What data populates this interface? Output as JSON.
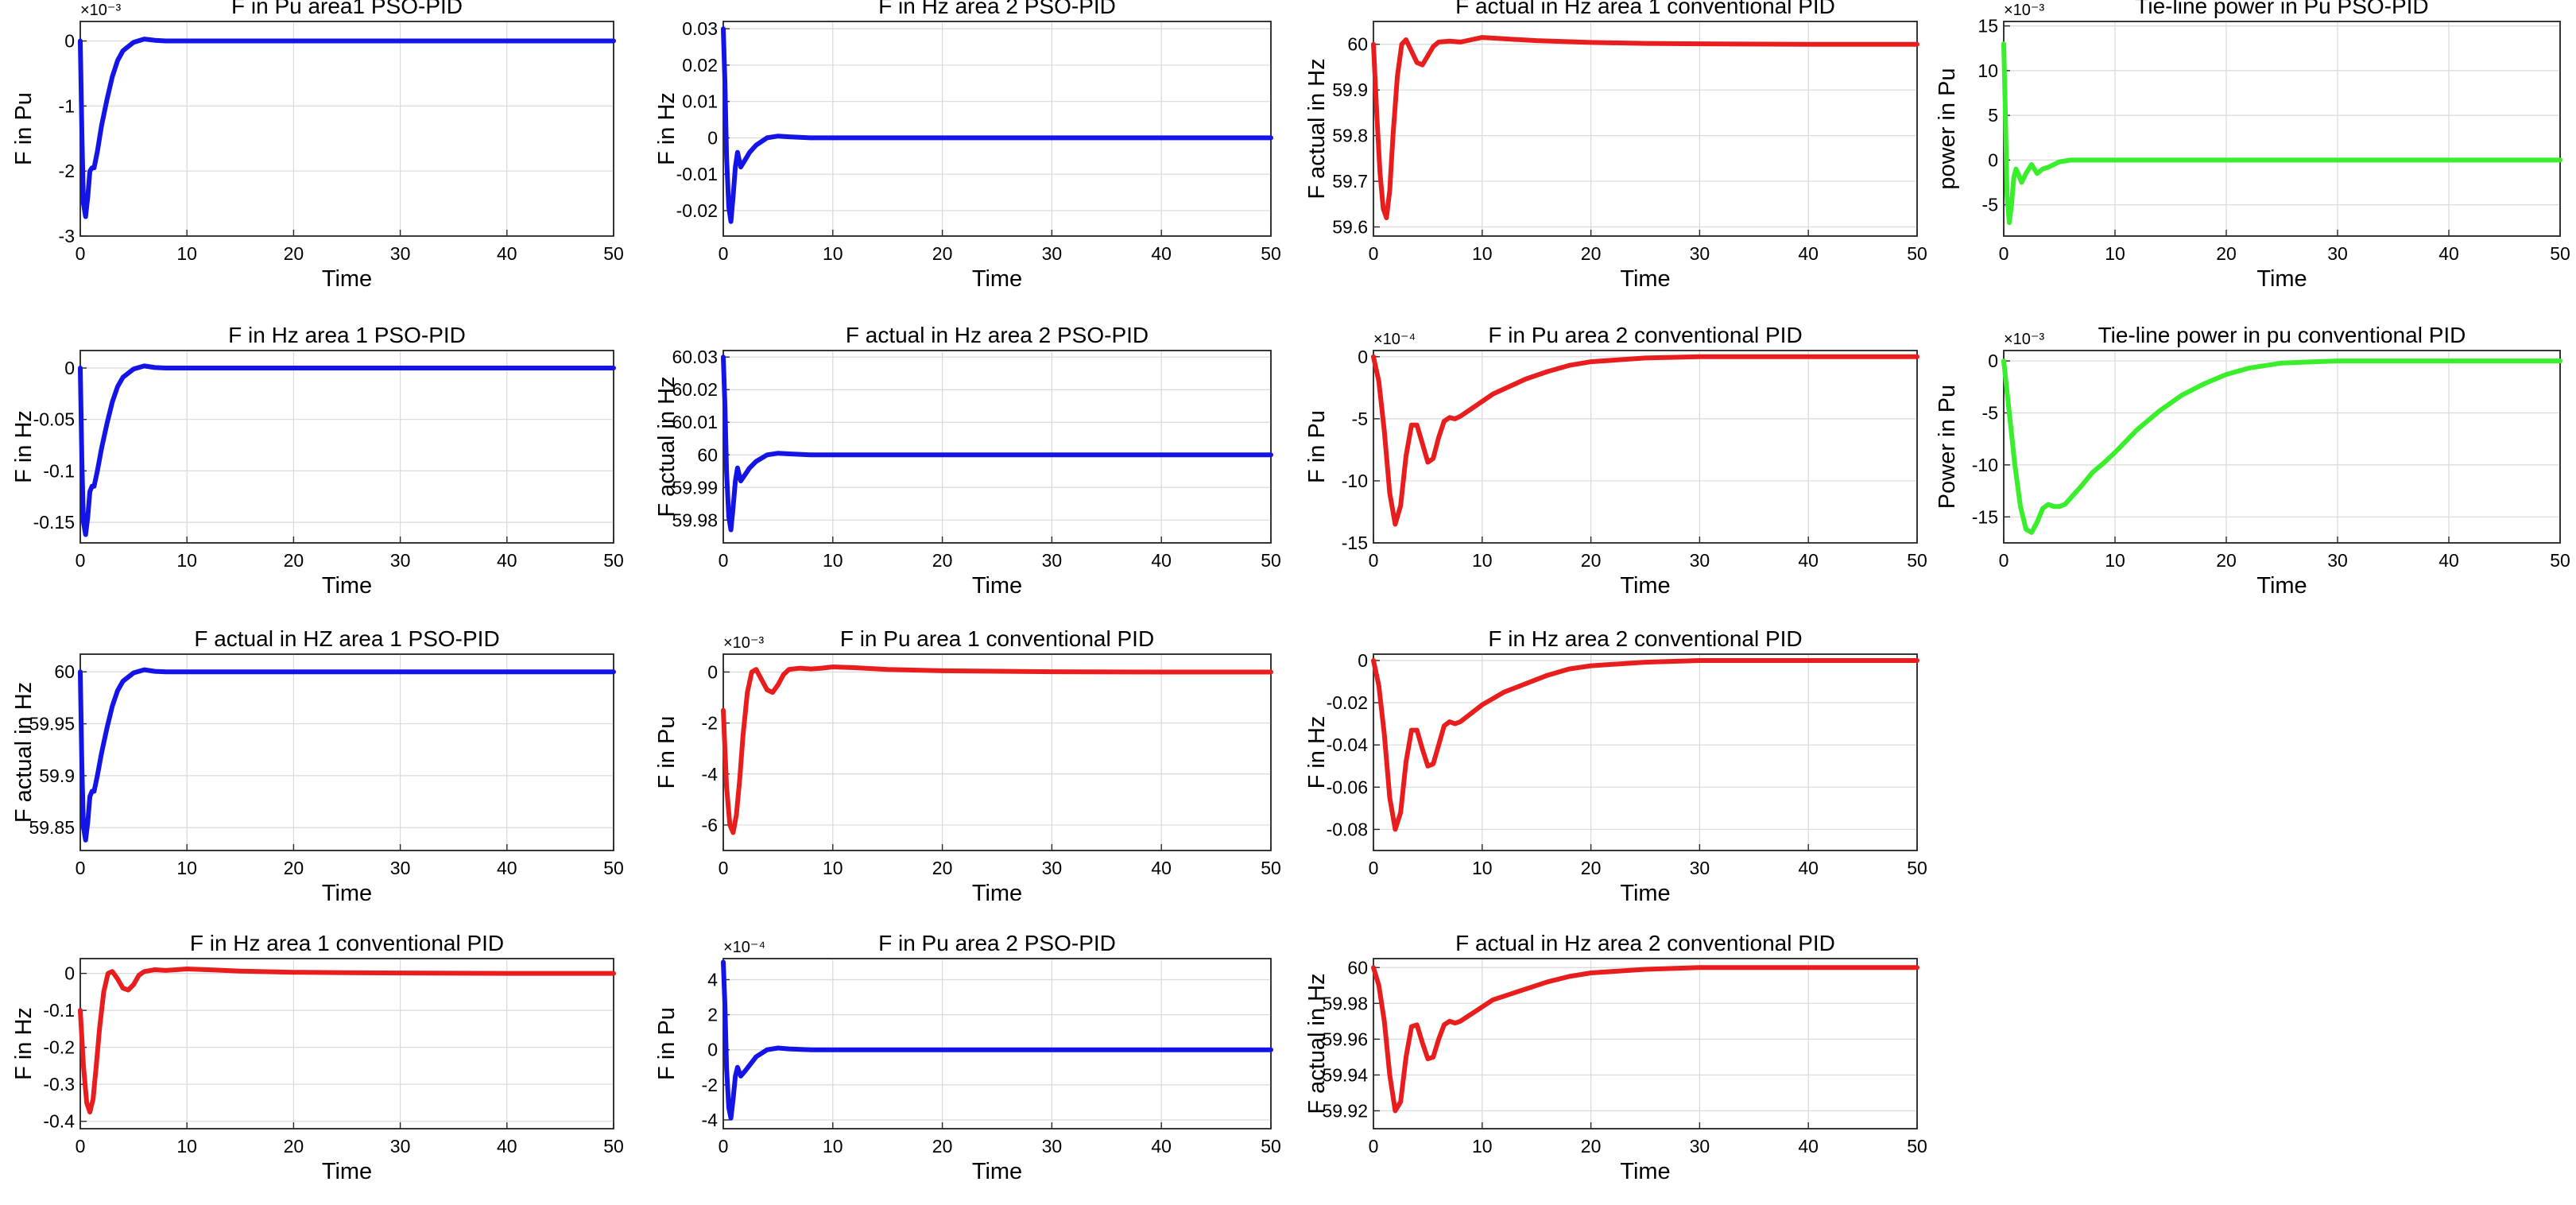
{
  "figure": {
    "colors": {
      "pso": "#1414e6",
      "conventional": "#e81e1e",
      "tieline": "#39ee2a"
    },
    "common_xlabel": "Time",
    "x_ticks": [
      0,
      10,
      20,
      30,
      40,
      50
    ]
  },
  "chart_data": [
    {
      "id": "p1",
      "type": "line",
      "title": "F in Pu area1 PSO-PID",
      "xlabel": "Time",
      "ylabel": "F in Pu",
      "exponent": "×10⁻³",
      "xlim": [
        0,
        50
      ],
      "ylim": [
        -3,
        0.3
      ],
      "yticks": [
        0,
        -1,
        -2,
        -3
      ],
      "ytick_labels": [
        "0",
        "-1",
        "-2",
        "-3"
      ],
      "color_key": "pso",
      "x": [
        0,
        0.15,
        0.3,
        0.5,
        0.7,
        0.9,
        1.1,
        1.3,
        1.6,
        2,
        2.5,
        3,
        3.5,
        4,
        5,
        6,
        7,
        8,
        10,
        15,
        20,
        30,
        40,
        50
      ],
      "y": [
        0,
        -1.4,
        -2.5,
        -2.7,
        -2.4,
        -2.0,
        -1.95,
        -1.95,
        -1.7,
        -1.3,
        -0.9,
        -0.55,
        -0.3,
        -0.15,
        -0.02,
        0.03,
        0.01,
        0,
        0,
        0,
        0,
        0,
        0,
        0
      ]
    },
    {
      "id": "p2",
      "type": "line",
      "title": "F in Hz area 2 PSO-PID",
      "xlabel": "Time",
      "ylabel": "F in Hz",
      "exponent": "",
      "xlim": [
        0,
        50
      ],
      "ylim": [
        -0.027,
        0.032
      ],
      "yticks": [
        0.03,
        0.02,
        0.01,
        0,
        -0.01,
        -0.02
      ],
      "ytick_labels": [
        "0.03",
        "0.02",
        "0.01",
        "0",
        "-0.01",
        "-0.02"
      ],
      "color_key": "pso",
      "x": [
        0,
        0.15,
        0.3,
        0.5,
        0.7,
        0.9,
        1.1,
        1.3,
        1.6,
        2,
        2.4,
        3,
        3.5,
        4,
        5,
        6,
        8,
        10,
        20,
        30,
        40,
        50
      ],
      "y": [
        0.03,
        0.015,
        -0.005,
        -0.019,
        -0.023,
        -0.016,
        -0.008,
        -0.004,
        -0.008,
        -0.006,
        -0.004,
        -0.002,
        -0.001,
        0,
        0.0005,
        0.0003,
        0,
        0,
        0,
        0,
        0,
        0
      ]
    },
    {
      "id": "p3",
      "type": "line",
      "title": "F actual in Hz area 1 conventional PID",
      "xlabel": "Time",
      "ylabel": "F actual in Hz",
      "exponent": "",
      "xlim": [
        0,
        50
      ],
      "ylim": [
        59.58,
        60.05
      ],
      "yticks": [
        60,
        59.9,
        59.8,
        59.7,
        59.6
      ],
      "ytick_labels": [
        "60",
        "59.9",
        "59.8",
        "59.7",
        "59.6"
      ],
      "color_key": "conventional",
      "x": [
        0,
        0.3,
        0.6,
        0.9,
        1.2,
        1.5,
        1.8,
        2.2,
        2.6,
        3,
        3.5,
        4,
        4.5,
        5,
        5.5,
        6,
        7,
        8,
        9,
        10,
        12,
        15,
        20,
        25,
        30,
        40,
        50
      ],
      "y": [
        60,
        59.85,
        59.72,
        59.64,
        59.62,
        59.68,
        59.8,
        59.93,
        60,
        60.01,
        59.985,
        59.96,
        59.955,
        59.975,
        59.995,
        60.005,
        60.007,
        60.005,
        60.01,
        60.015,
        60.012,
        60.008,
        60.004,
        60.002,
        60.001,
        60,
        60
      ]
    },
    {
      "id": "p4",
      "type": "line",
      "title": "Tie-line power  in Pu PSO-PID",
      "xlabel": "Time",
      "ylabel": "power in Pu",
      "exponent": "×10⁻³",
      "xlim": [
        0,
        50
      ],
      "ylim": [
        -8.5,
        15.5
      ],
      "yticks": [
        15,
        10,
        5,
        0,
        -5
      ],
      "ytick_labels": [
        "15",
        "10",
        "5",
        "0",
        "-5"
      ],
      "color_key": "tieline",
      "x": [
        0,
        0.15,
        0.3,
        0.5,
        0.7,
        0.9,
        1.1,
        1.3,
        1.6,
        2,
        2.5,
        3,
        3.5,
        4,
        5,
        6,
        8,
        10,
        20,
        30,
        40,
        50
      ],
      "y": [
        13,
        5,
        -4,
        -7,
        -5,
        -2,
        -1,
        -1.5,
        -2.5,
        -1.5,
        -0.5,
        -1.5,
        -1,
        -0.8,
        -0.2,
        0,
        0,
        0,
        0,
        0,
        0,
        0
      ]
    },
    {
      "id": "p5",
      "type": "line",
      "title": "F in Hz area 1 PSO-PID",
      "xlabel": "Time",
      "ylabel": "F in Hz",
      "exponent": "",
      "xlim": [
        0,
        50
      ],
      "ylim": [
        -0.17,
        0.017
      ],
      "yticks": [
        0,
        -0.05,
        -0.1,
        -0.15
      ],
      "ytick_labels": [
        "0",
        "-0.05",
        "-0.1",
        "-0.15"
      ],
      "color_key": "pso",
      "x": [
        0,
        0.15,
        0.3,
        0.5,
        0.7,
        0.9,
        1.1,
        1.3,
        1.6,
        2,
        2.5,
        3,
        3.5,
        4,
        5,
        6,
        7,
        8,
        10,
        15,
        20,
        30,
        40,
        50
      ],
      "y": [
        0,
        -0.09,
        -0.15,
        -0.162,
        -0.145,
        -0.12,
        -0.115,
        -0.115,
        -0.1,
        -0.078,
        -0.054,
        -0.033,
        -0.018,
        -0.009,
        -0.001,
        0.002,
        0.0005,
        0,
        0,
        0,
        0,
        0,
        0,
        0
      ]
    },
    {
      "id": "p6",
      "type": "line",
      "title": "F actual in Hz area 2 PSO-PID",
      "xlabel": "Time",
      "ylabel": "F actual in Hz",
      "exponent": "",
      "xlim": [
        0,
        50
      ],
      "ylim": [
        59.973,
        60.032
      ],
      "yticks": [
        60.03,
        60.02,
        60.01,
        60,
        59.99,
        59.98
      ],
      "ytick_labels": [
        "60.03",
        "60.02",
        "60.01",
        "60",
        "59.99",
        "59.98"
      ],
      "color_key": "pso",
      "x": [
        0,
        0.15,
        0.3,
        0.5,
        0.7,
        0.9,
        1.1,
        1.3,
        1.6,
        2,
        2.4,
        3,
        3.5,
        4,
        5,
        6,
        8,
        10,
        20,
        30,
        40,
        50
      ],
      "y": [
        60.03,
        60.015,
        59.995,
        59.981,
        59.977,
        59.984,
        59.992,
        59.996,
        59.992,
        59.994,
        59.996,
        59.998,
        59.999,
        60,
        60.0005,
        60.0003,
        60,
        60,
        60,
        60,
        60,
        60
      ]
    },
    {
      "id": "p7",
      "type": "line",
      "title": "F in Pu area 2 conventional PID",
      "xlabel": "Time",
      "ylabel": "F in Pu",
      "exponent": "×10⁻⁴",
      "xlim": [
        0,
        50
      ],
      "ylim": [
        -15,
        0.5
      ],
      "yticks": [
        0,
        -5,
        -10,
        -15
      ],
      "ytick_labels": [
        "0",
        "-5",
        "-10",
        "-15"
      ],
      "color_key": "conventional",
      "x": [
        0,
        0.5,
        1,
        1.5,
        2,
        2.5,
        3,
        3.5,
        4,
        4.5,
        5,
        5.5,
        6,
        6.5,
        7,
        7.5,
        8,
        9,
        10,
        11,
        12,
        14,
        16,
        18,
        20,
        25,
        30,
        40,
        50
      ],
      "y": [
        0,
        -2,
        -6,
        -11,
        -13.5,
        -12,
        -8,
        -5.5,
        -5.5,
        -7,
        -8.5,
        -8.2,
        -6.5,
        -5.2,
        -4.9,
        -5,
        -4.8,
        -4.2,
        -3.6,
        -3,
        -2.6,
        -1.8,
        -1.2,
        -0.7,
        -0.4,
        -0.1,
        0,
        0,
        0
      ]
    },
    {
      "id": "p8",
      "type": "line",
      "title": "Tie-line power in pu conventional PID",
      "xlabel": "Time",
      "ylabel": "Power in Pu",
      "exponent": "×10⁻³",
      "xlim": [
        0,
        50
      ],
      "ylim": [
        -17.5,
        1
      ],
      "yticks": [
        0,
        -5,
        -10,
        -15
      ],
      "ytick_labels": [
        "0",
        "-5",
        "-10",
        "-15"
      ],
      "color_key": "tieline",
      "x": [
        0,
        0.5,
        1,
        1.5,
        2,
        2.5,
        3,
        3.5,
        4,
        4.5,
        5,
        5.5,
        6,
        7,
        8,
        9,
        10,
        12,
        14,
        16,
        18,
        20,
        22,
        25,
        30,
        40,
        50
      ],
      "y": [
        0,
        -5,
        -10,
        -14,
        -16.2,
        -16.5,
        -15.5,
        -14.2,
        -13.8,
        -14,
        -14,
        -13.8,
        -13.2,
        -12,
        -10.7,
        -9.8,
        -8.8,
        -6.6,
        -4.8,
        -3.3,
        -2.2,
        -1.3,
        -0.7,
        -0.2,
        0,
        0,
        0
      ]
    },
    {
      "id": "p9",
      "type": "line",
      "title": "F actual in HZ area 1 PSO-PID",
      "xlabel": "Time",
      "ylabel": "F actual in Hz",
      "exponent": "",
      "xlim": [
        0,
        50
      ],
      "ylim": [
        59.828,
        60.017
      ],
      "yticks": [
        60,
        59.95,
        59.9,
        59.85
      ],
      "ytick_labels": [
        "60",
        "59.95",
        "59.9",
        "59.85"
      ],
      "color_key": "pso",
      "x": [
        0,
        0.15,
        0.3,
        0.5,
        0.7,
        0.9,
        1.1,
        1.3,
        1.6,
        2,
        2.5,
        3,
        3.5,
        4,
        5,
        6,
        7,
        8,
        10,
        15,
        20,
        30,
        40,
        50
      ],
      "y": [
        60,
        59.91,
        59.85,
        59.838,
        59.855,
        59.88,
        59.885,
        59.885,
        59.9,
        59.922,
        59.946,
        59.967,
        59.982,
        59.991,
        59.999,
        60.002,
        60.0005,
        60,
        60,
        60,
        60,
        60,
        60,
        60
      ]
    },
    {
      "id": "p10",
      "type": "line",
      "title": "F in Pu  area 1 conventional PID",
      "xlabel": "Time",
      "ylabel": "F in Pu",
      "exponent": "×10⁻³",
      "xlim": [
        0,
        50
      ],
      "ylim": [
        -7,
        0.7
      ],
      "yticks": [
        0,
        -2,
        -4,
        -6
      ],
      "ytick_labels": [
        "0",
        "-2",
        "-4",
        "-6"
      ],
      "color_key": "conventional",
      "x": [
        0,
        0.3,
        0.6,
        0.9,
        1.2,
        1.5,
        1.8,
        2.2,
        2.6,
        3,
        3.5,
        4,
        4.5,
        5,
        5.5,
        6,
        7,
        8,
        9,
        10,
        12,
        15,
        20,
        25,
        30,
        40,
        50
      ],
      "y": [
        -1.5,
        -4.5,
        -6,
        -6.3,
        -5.6,
        -4.2,
        -2.5,
        -0.8,
        0,
        0.1,
        -0.3,
        -0.7,
        -0.8,
        -0.5,
        -0.1,
        0.1,
        0.15,
        0.12,
        0.15,
        0.2,
        0.17,
        0.1,
        0.05,
        0.03,
        0.01,
        0,
        0
      ]
    },
    {
      "id": "p11",
      "type": "line",
      "title": "F in Hz area 2 conventional PID",
      "xlabel": "Time",
      "ylabel": "F in Hz",
      "exponent": "",
      "xlim": [
        0,
        50
      ],
      "ylim": [
        -0.09,
        0.003
      ],
      "yticks": [
        0,
        -0.02,
        -0.04,
        -0.06,
        -0.08
      ],
      "ytick_labels": [
        "0",
        "-0.02",
        "-0.04",
        "-0.06",
        "-0.08"
      ],
      "color_key": "conventional",
      "x": [
        0,
        0.5,
        1,
        1.5,
        2,
        2.5,
        3,
        3.5,
        4,
        4.5,
        5,
        5.5,
        6,
        6.5,
        7,
        7.5,
        8,
        9,
        10,
        11,
        12,
        14,
        16,
        18,
        20,
        25,
        30,
        40,
        50
      ],
      "y": [
        0,
        -0.012,
        -0.035,
        -0.065,
        -0.08,
        -0.072,
        -0.048,
        -0.033,
        -0.033,
        -0.042,
        -0.05,
        -0.049,
        -0.04,
        -0.031,
        -0.029,
        -0.03,
        -0.029,
        -0.025,
        -0.021,
        -0.018,
        -0.015,
        -0.011,
        -0.007,
        -0.004,
        -0.0025,
        -0.0008,
        0,
        0,
        0
      ]
    },
    {
      "id": "p12",
      "type": "line",
      "title": "F in Hz  area 1 conventional PID",
      "xlabel": "Time",
      "ylabel": "F in Hz",
      "exponent": "",
      "xlim": [
        0,
        50
      ],
      "ylim": [
        -0.42,
        0.04
      ],
      "yticks": [
        0,
        -0.1,
        -0.2,
        -0.3,
        -0.4
      ],
      "ytick_labels": [
        "0",
        "-0.1",
        "-0.2",
        "-0.3",
        "-0.4"
      ],
      "color_key": "conventional",
      "x": [
        0,
        0.3,
        0.6,
        0.9,
        1.2,
        1.5,
        1.8,
        2.2,
        2.6,
        3,
        3.5,
        4,
        4.5,
        5,
        5.5,
        6,
        7,
        8,
        9,
        10,
        12,
        15,
        20,
        25,
        30,
        40,
        50
      ],
      "y": [
        -0.1,
        -0.25,
        -0.35,
        -0.375,
        -0.34,
        -0.25,
        -0.15,
        -0.05,
        0,
        0.005,
        -0.015,
        -0.04,
        -0.045,
        -0.03,
        -0.005,
        0.005,
        0.01,
        0.008,
        0.01,
        0.012,
        0.01,
        0.006,
        0.003,
        0.002,
        0.001,
        0,
        0
      ]
    },
    {
      "id": "p13",
      "type": "line",
      "title": "F in Pu area 2 PSO-PID",
      "xlabel": "Time",
      "ylabel": "F in Pu",
      "exponent": "×10⁻⁴",
      "xlim": [
        0,
        50
      ],
      "ylim": [
        -4.5,
        5.2
      ],
      "yticks": [
        4,
        2,
        0,
        -2,
        -4
      ],
      "ytick_labels": [
        "4",
        "2",
        "0",
        "-2",
        "-4"
      ],
      "color_key": "pso",
      "x": [
        0,
        0.15,
        0.3,
        0.5,
        0.7,
        0.9,
        1.1,
        1.3,
        1.6,
        2,
        2.5,
        3,
        3.5,
        4,
        5,
        6,
        8,
        10,
        20,
        30,
        40,
        50
      ],
      "y": [
        5,
        2.5,
        -1,
        -3.3,
        -3.9,
        -2.8,
        -1.5,
        -1,
        -1.5,
        -1.2,
        -0.8,
        -0.4,
        -0.2,
        0,
        0.1,
        0.05,
        0,
        0,
        0,
        0,
        0,
        0
      ]
    },
    {
      "id": "p14",
      "type": "line",
      "title": "F actual in Hz area 2 conventional PID",
      "xlabel": "Time",
      "ylabel": "F actual in Hz",
      "exponent": "",
      "xlim": [
        0,
        50
      ],
      "ylim": [
        59.91,
        60.005
      ],
      "yticks": [
        60,
        59.98,
        59.96,
        59.94,
        59.92
      ],
      "ytick_labels": [
        "60",
        "59.98",
        "59.96",
        "59.94",
        "59.92"
      ],
      "color_key": "conventional",
      "x": [
        0,
        0.5,
        1,
        1.5,
        2,
        2.5,
        3,
        3.5,
        4,
        4.5,
        5,
        5.5,
        6,
        6.5,
        7,
        7.5,
        8,
        9,
        10,
        11,
        12,
        14,
        16,
        18,
        20,
        25,
        30,
        40,
        50
      ],
      "y": [
        60,
        59.99,
        59.97,
        59.94,
        59.92,
        59.925,
        59.95,
        59.967,
        59.968,
        59.958,
        59.949,
        59.95,
        59.96,
        59.968,
        59.97,
        59.969,
        59.97,
        59.974,
        59.978,
        59.982,
        59.984,
        59.988,
        59.992,
        59.995,
        59.997,
        59.999,
        60,
        60,
        60
      ]
    }
  ]
}
